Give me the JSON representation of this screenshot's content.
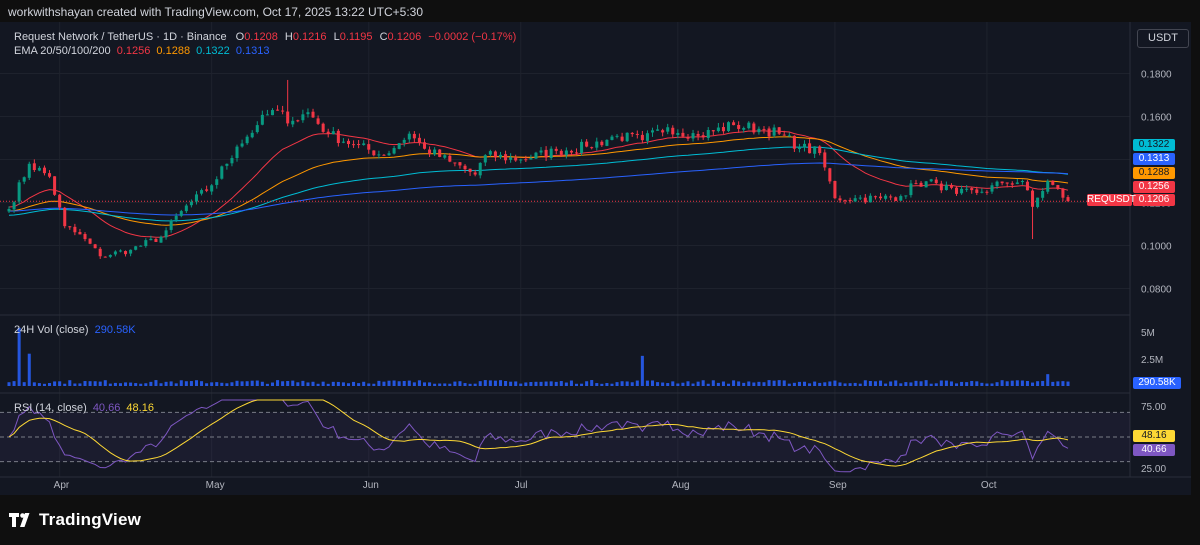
{
  "header": {
    "attribution": "workwithshayan created with TradingView.com, Oct 17, 2025 13:22 UTC+5:30"
  },
  "symbol": {
    "title": "Request Network / TetherUS · 1D · Binance",
    "o_label": "O",
    "o": "0.1208",
    "h_label": "H",
    "h": "0.1216",
    "l_label": "L",
    "l": "0.1195",
    "c_label": "C",
    "c": "0.1206",
    "change": "−0.0002 (−0.17%)",
    "currency_button": "USDT",
    "ticker_tag": "REQUSDT"
  },
  "ema_legend": {
    "label": "EMA 20/50/100/200",
    "v20": "0.1256",
    "v50": "0.1288",
    "v100": "0.1322",
    "v200": "0.1313"
  },
  "vol_legend": {
    "label": "24H Vol (close)",
    "value": "290.58K"
  },
  "rsi_legend": {
    "label": "RSI (14, close)",
    "rsi": "40.66",
    "ma": "48.16"
  },
  "price_tags": {
    "ema100": "0.1322",
    "ema200": "0.1313",
    "ema50": "0.1288",
    "ema20": "0.1256",
    "close": "0.1206",
    "volume": "290.58K",
    "rsi_ma": "48.16",
    "rsi": "40.66"
  },
  "colors": {
    "up": "#089981",
    "down": "#f23645",
    "ema20": "#f23645",
    "ema50": "#ff9800",
    "ema100": "#00bcd4",
    "ema200": "#2962ff",
    "volume": "#2962ff",
    "rsi": "#7e57c2",
    "rsi_ma": "#fdd835"
  },
  "footer": {
    "brand": "TradingView"
  },
  "chart_data": [
    {
      "type": "candlestick",
      "title": "Request Network / TetherUS · 1D · Binance",
      "x_ticks": [
        "Apr",
        "May",
        "Jun",
        "Jul",
        "Aug",
        "Sep",
        "Oct"
      ],
      "y_ticks": [
        "0.1800",
        "0.1600",
        "0.1400",
        "0.1200",
        "0.1000",
        "0.0800"
      ],
      "ylim": [
        0.07,
        0.19
      ],
      "start_date": "2025-03-22",
      "grid": true,
      "series": [
        {
          "name": "EMA 20",
          "last": 0.1256
        },
        {
          "name": "EMA 50",
          "last": 0.1288
        },
        {
          "name": "EMA 100",
          "last": 0.1322
        },
        {
          "name": "EMA 200",
          "last": 0.1313
        }
      ],
      "keypoints": [
        {
          "date": "2025-03-22",
          "close": 0.117
        },
        {
          "date": "2025-03-26",
          "close": 0.138
        },
        {
          "date": "2025-03-30",
          "close": 0.132
        },
        {
          "date": "2025-04-02",
          "close": 0.109
        },
        {
          "date": "2025-04-06",
          "close": 0.103
        },
        {
          "date": "2025-04-09",
          "close": 0.095
        },
        {
          "date": "2025-04-15",
          "close": 0.098
        },
        {
          "date": "2025-04-21",
          "close": 0.104
        },
        {
          "date": "2025-04-25",
          "close": 0.116
        },
        {
          "date": "2025-05-01",
          "close": 0.128
        },
        {
          "date": "2025-05-06",
          "close": 0.146
        },
        {
          "date": "2025-05-10",
          "close": 0.156
        },
        {
          "date": "2025-05-13",
          "close": 0.163
        },
        {
          "date": "2025-05-17",
          "close": 0.158
        },
        {
          "date": "2025-05-20",
          "close": 0.162
        },
        {
          "date": "2025-05-24",
          "close": 0.152
        },
        {
          "date": "2025-05-29",
          "close": 0.147
        },
        {
          "date": "2025-06-04",
          "close": 0.142
        },
        {
          "date": "2025-06-09",
          "close": 0.152
        },
        {
          "date": "2025-06-12",
          "close": 0.145
        },
        {
          "date": "2025-06-17",
          "close": 0.139
        },
        {
          "date": "2025-06-22",
          "close": 0.133
        },
        {
          "date": "2025-06-24",
          "close": 0.142
        },
        {
          "date": "2025-07-01",
          "close": 0.14
        },
        {
          "date": "2025-07-08",
          "close": 0.144
        },
        {
          "date": "2025-07-14",
          "close": 0.146
        },
        {
          "date": "2025-07-20",
          "close": 0.151
        },
        {
          "date": "2025-07-25",
          "close": 0.149
        },
        {
          "date": "2025-07-30",
          "close": 0.155
        },
        {
          "date": "2025-08-05",
          "close": 0.151
        },
        {
          "date": "2025-08-12",
          "close": 0.156
        },
        {
          "date": "2025-08-18",
          "close": 0.154
        },
        {
          "date": "2025-08-21",
          "close": 0.152
        },
        {
          "date": "2025-08-25",
          "close": 0.146
        },
        {
          "date": "2025-08-29",
          "close": 0.143
        },
        {
          "date": "2025-09-01",
          "close": 0.122
        },
        {
          "date": "2025-09-05",
          "close": 0.122
        },
        {
          "date": "2025-09-10",
          "close": 0.122
        },
        {
          "date": "2025-09-14",
          "close": 0.123
        },
        {
          "date": "2025-09-17",
          "close": 0.129
        },
        {
          "date": "2025-09-21",
          "close": 0.129
        },
        {
          "date": "2025-09-25",
          "close": 0.124
        },
        {
          "date": "2025-09-30",
          "close": 0.125
        },
        {
          "date": "2025-10-04",
          "close": 0.129
        },
        {
          "date": "2025-10-08",
          "close": 0.13
        },
        {
          "date": "2025-10-10",
          "close": 0.118
        },
        {
          "date": "2025-10-13",
          "close": 0.13
        },
        {
          "date": "2025-10-17",
          "close": 0.1206
        }
      ],
      "spikes": [
        {
          "date": "2025-05-16",
          "high": 0.177
        },
        {
          "date": "2025-10-10",
          "low": 0.103
        }
      ]
    },
    {
      "type": "bar",
      "title": "24H Vol (close)",
      "y_ticks": [
        "5M",
        "2.5M"
      ],
      "ylim": [
        0,
        6500000
      ],
      "last": "290.58K",
      "spikes_millions": [
        {
          "date": "2025-03-24",
          "v": 5.4
        },
        {
          "date": "2025-03-26",
          "v": 3.0
        },
        {
          "date": "2025-07-25",
          "v": 2.8
        },
        {
          "date": "2025-10-13",
          "v": 1.1
        }
      ],
      "baseline_millions": 0.4
    },
    {
      "type": "line",
      "title": "RSI (14, close)",
      "y_ticks": [
        "75.00",
        "25.00"
      ],
      "ylim": [
        20,
        80
      ],
      "bands": [
        30,
        50,
        70
      ],
      "series": [
        {
          "name": "RSI",
          "last": 40.66
        },
        {
          "name": "RSI MA",
          "last": 48.16
        }
      ]
    }
  ]
}
